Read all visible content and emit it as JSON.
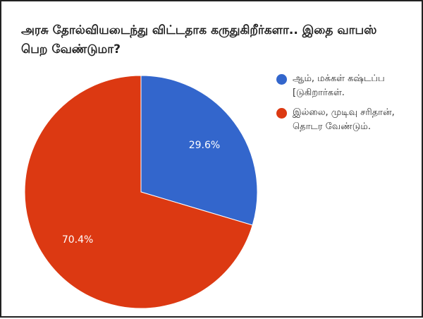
{
  "chart_data": {
    "type": "pie",
    "title": "அரசு தோல்வியடைந்து விட்டதாக கருதுகிறீர்களா.. இதை வாபஸ் பெற வேண்டுமா?",
    "legend_position": "right",
    "slices": [
      {
        "label": "ஆம், மக்கள் கஷ்டப்ப[டுகிறார்கள்.",
        "value": 29.6,
        "display": "29.6%",
        "color": "#3366cc"
      },
      {
        "label": "இல்லை, முடிவு சரிதான்,தொடர வேண்டும்.",
        "value": 70.4,
        "display": "70.4%",
        "color": "#dc3912"
      }
    ]
  }
}
